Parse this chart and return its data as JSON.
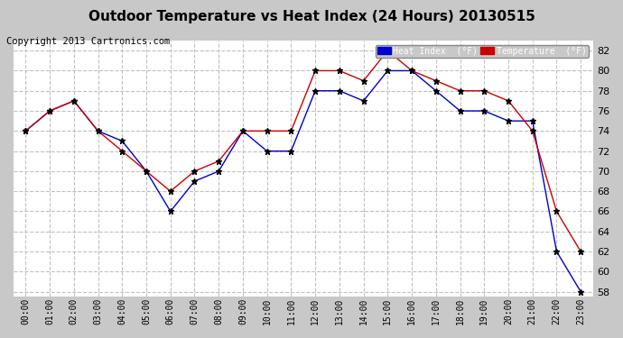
{
  "title": "Outdoor Temperature vs Heat Index (24 Hours) 20130515",
  "copyright": "Copyright 2013 Cartronics.com",
  "x_labels": [
    "00:00",
    "01:00",
    "02:00",
    "03:00",
    "04:00",
    "05:00",
    "06:00",
    "07:00",
    "08:00",
    "09:00",
    "10:00",
    "11:00",
    "12:00",
    "13:00",
    "14:00",
    "15:00",
    "16:00",
    "17:00",
    "18:00",
    "19:00",
    "20:00",
    "21:00",
    "22:00",
    "23:00"
  ],
  "heat_index": [
    74,
    76,
    77,
    74,
    73,
    70,
    66,
    69,
    70,
    74,
    72,
    72,
    78,
    78,
    77,
    80,
    80,
    78,
    76,
    76,
    75,
    75,
    62,
    58
  ],
  "temperature": [
    74,
    76,
    77,
    74,
    72,
    70,
    68,
    70,
    71,
    74,
    74,
    74,
    80,
    80,
    79,
    82,
    80,
    79,
    78,
    78,
    77,
    74,
    66,
    62
  ],
  "ylim_min": 57.5,
  "ylim_max": 83,
  "yticks": [
    58,
    60,
    62,
    64,
    66,
    68,
    70,
    72,
    74,
    76,
    78,
    80,
    82
  ],
  "heat_index_color": "#0000cc",
  "temperature_color": "#cc0000",
  "fig_bg_color": "#c8c8c8",
  "plot_bg_color": "#ffffff",
  "grid_color": "#c0c0c0",
  "legend_hi_bg": "#0000cc",
  "legend_temp_bg": "#cc0000",
  "title_fontsize": 11,
  "copyright_fontsize": 7.5
}
